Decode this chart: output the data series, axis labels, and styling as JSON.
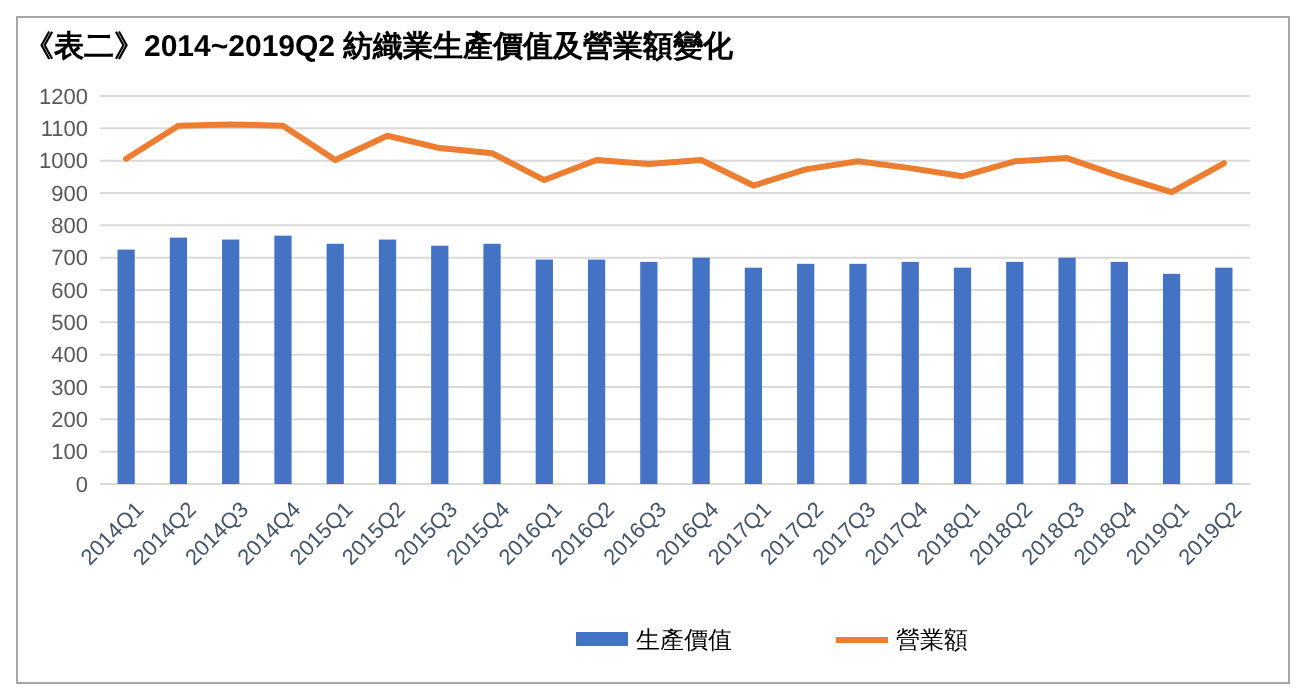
{
  "chart_data": {
    "type": "bar",
    "title": "《表二》2014~2019Q2 紡織業生產價值及營業額變化",
    "categories": [
      "2014Q1",
      "2014Q2",
      "2014Q3",
      "2014Q4",
      "2015Q1",
      "2015Q2",
      "2015Q3",
      "2015Q4",
      "2016Q1",
      "2016Q2",
      "2016Q3",
      "2016Q4",
      "2017Q1",
      "2017Q2",
      "2017Q3",
      "2017Q4",
      "2018Q1",
      "2018Q2",
      "2018Q3",
      "2018Q4",
      "2019Q1",
      "2019Q2"
    ],
    "series": [
      {
        "name": "生產價值",
        "color": "#4472c4",
        "values": [
          725,
          762,
          756,
          768,
          743,
          756,
          737,
          743,
          694,
          694,
          687,
          700,
          669,
          681,
          681,
          687,
          669,
          687,
          700,
          687,
          650,
          669
        ]
      },
      {
        "name": "營業額",
        "type": "line",
        "color": "#ed7d31",
        "values": [
          1006,
          1108,
          1112,
          1108,
          1002,
          1077,
          1039,
          1023,
          940,
          1002,
          990,
          1002,
          923,
          973,
          998,
          977,
          952,
          998,
          1008,
          952,
          903,
          992
        ]
      }
    ],
    "ylim": [
      0,
      1200
    ],
    "yticks": [
      0,
      100,
      200,
      300,
      400,
      500,
      600,
      700,
      800,
      900,
      1000,
      1100,
      1200
    ],
    "grid": "y",
    "legend": "bottom"
  }
}
